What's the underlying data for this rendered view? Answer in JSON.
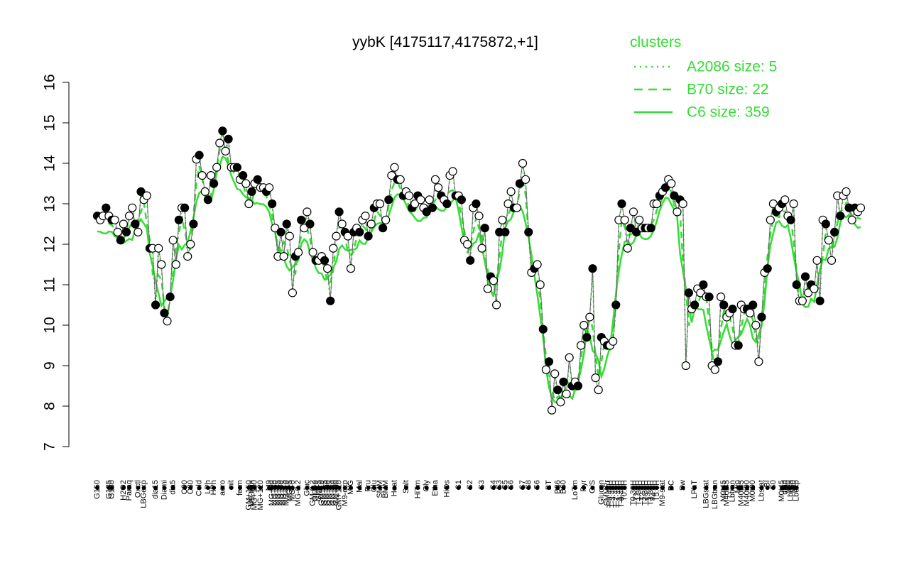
{
  "chart_data": {
    "type": "line",
    "title": "yybK [4175117,4175872,+1]",
    "xlabel": "",
    "ylabel": "",
    "ylim": [
      7,
      16
    ],
    "yticks": [
      7,
      8,
      9,
      10,
      11,
      12,
      13,
      14,
      15,
      16
    ],
    "grid": false,
    "legend": {
      "position": "top-right",
      "title": "clusters",
      "entries": [
        {
          "label": "A2086 size: 5",
          "style": "dotted"
        },
        {
          "label": "B70 size: 22",
          "style": "dashed"
        },
        {
          "label": "C6 size: 359",
          "style": "solid"
        }
      ]
    },
    "x_labels": [
      {
        "label": "G150",
        "i": 0
      },
      {
        "label": "G135",
        "i": 4
      },
      {
        "label": "G180",
        "i": 5
      },
      {
        "label": "H2O2",
        "i": 9
      },
      {
        "label": "Paraq",
        "i": 11
      },
      {
        "label": "Oxctl",
        "i": 14
      },
      {
        "label": "LBGexp",
        "i": 16
      },
      {
        "label": "dia15",
        "i": 20
      },
      {
        "label": "Diami",
        "i": 23
      },
      {
        "label": "dia5",
        "i": 26
      },
      {
        "label": "C90",
        "i": 30
      },
      {
        "label": "C30",
        "i": 32
      },
      {
        "label": "Cold",
        "i": 35
      },
      {
        "label": "LPh",
        "i": 38
      },
      {
        "label": "HPh",
        "i": 40
      },
      {
        "label": "aero",
        "i": 43
      },
      {
        "label": "nit",
        "i": 46
      },
      {
        "label": "ferm",
        "i": 49
      },
      {
        "label": "GM+150",
        "i": 52
      },
      {
        "label": "M9-tran",
        "i": 53
      },
      {
        "label": "MG+150",
        "i": 54
      },
      {
        "label": "MG+120",
        "i": 56
      },
      {
        "label": "M9",
        "i": 59
      },
      {
        "label": "MG+90",
        "i": 60
      },
      {
        "label": "MG+60",
        "i": 61
      },
      {
        "label": "MG+45",
        "i": 62
      },
      {
        "label": "MG+30",
        "i": 63
      },
      {
        "label": "MG+15",
        "i": 64
      },
      {
        "label": "MG+10",
        "i": 65
      },
      {
        "label": "MG+5",
        "i": 66
      },
      {
        "label": "MG+0",
        "i": 67
      },
      {
        "label": "MG-0.2",
        "i": 69
      },
      {
        "label": "Gluc",
        "i": 72
      },
      {
        "label": "GM-0.2",
        "i": 74
      },
      {
        "label": "GM+0",
        "i": 75
      },
      {
        "label": "GM+5",
        "i": 76
      },
      {
        "label": "GM+10",
        "i": 77
      },
      {
        "label": "GM+15",
        "i": 78
      },
      {
        "label": "GM+30",
        "i": 79
      },
      {
        "label": "GM+45",
        "i": 80
      },
      {
        "label": "GM+60",
        "i": 81
      },
      {
        "label": "GM+90",
        "i": 82
      },
      {
        "label": "GM+120",
        "i": 83
      },
      {
        "label": "M9-exp",
        "i": 85
      },
      {
        "label": "M/G",
        "i": 87
      },
      {
        "label": "Mal",
        "i": 90
      },
      {
        "label": "Fru",
        "i": 93
      },
      {
        "label": "Glu",
        "i": 95
      },
      {
        "label": "SMM",
        "i": 97
      },
      {
        "label": "BMM",
        "i": 99
      },
      {
        "label": "Heat",
        "i": 102
      },
      {
        "label": "Salt",
        "i": 106
      },
      {
        "label": "HiTm",
        "i": 110
      },
      {
        "label": "Gly",
        "i": 113
      },
      {
        "label": "Etha",
        "i": 116
      },
      {
        "label": "HiOs",
        "i": 120
      },
      {
        "label": "S1",
        "i": 124
      },
      {
        "label": "S2",
        "i": 128
      },
      {
        "label": "S3",
        "i": 132
      },
      {
        "label": "S4",
        "i": 136
      },
      {
        "label": "S3",
        "i": 138
      },
      {
        "label": "S5",
        "i": 140
      },
      {
        "label": "S6",
        "i": 142
      },
      {
        "label": "S7",
        "i": 146
      },
      {
        "label": "S8",
        "i": 148
      },
      {
        "label": "S6",
        "i": 151
      },
      {
        "label": "BT",
        "i": 155
      },
      {
        "label": "B36",
        "i": 158
      },
      {
        "label": "B60",
        "i": 160
      },
      {
        "label": "LoTm",
        "i": 164
      },
      {
        "label": "Pyr",
        "i": 167
      },
      {
        "label": "G/S",
        "i": 170
      },
      {
        "label": "Glucon",
        "i": 173
      },
      {
        "label": "SMMPr",
        "i": 175
      },
      {
        "label": "T-5.40H",
        "i": 176
      },
      {
        "label": "T-3.40H",
        "i": 177
      },
      {
        "label": "T-2.40H",
        "i": 178
      },
      {
        "label": "T-1.40H",
        "i": 179
      },
      {
        "label": "T-0.40H",
        "i": 180
      },
      {
        "label": "T0.0H",
        "i": 181
      },
      {
        "label": "T0.30H",
        "i": 184
      },
      {
        "label": "T1.0H",
        "i": 185
      },
      {
        "label": "T1.30H",
        "i": 186
      },
      {
        "label": "T2.0H",
        "i": 187
      },
      {
        "label": "T2.30H",
        "i": 188
      },
      {
        "label": "T3.0H",
        "i": 189
      },
      {
        "label": "T3.30H",
        "i": 190
      },
      {
        "label": "T4.0H",
        "i": 191
      },
      {
        "label": "T5.0H",
        "i": 192
      },
      {
        "label": "M9-stat",
        "i": 194
      },
      {
        "label": "BC",
        "i": 197
      },
      {
        "label": "Sw",
        "i": 201
      },
      {
        "label": "LPhT",
        "i": 205
      },
      {
        "label": "LBGstat",
        "i": 209
      },
      {
        "label": "LBGtran",
        "i": 212
      },
      {
        "label": "M0t45",
        "i": 215
      },
      {
        "label": "M40t45",
        "i": 216
      },
      {
        "label": "Lbtran",
        "i": 218
      },
      {
        "label": "Mt0",
        "i": 220
      },
      {
        "label": "M40t45",
        "i": 221
      },
      {
        "label": "M40t90",
        "i": 223
      },
      {
        "label": "M0t90",
        "i": 225
      },
      {
        "label": "Lbstat",
        "i": 228
      },
      {
        "label": "BI",
        "i": 230
      },
      {
        "label": "S0",
        "i": 232
      },
      {
        "label": "M0t45",
        "i": 235
      },
      {
        "label": "dia0",
        "i": 236
      },
      {
        "label": "Mt0",
        "i": 237
      },
      {
        "label": "Lbexp",
        "i": 238
      },
      {
        "label": "Mt0",
        "i": 239
      },
      {
        "label": "Lbexp",
        "i": 240
      }
    ],
    "series": [
      {
        "name": "yybK",
        "style": "points",
        "y": [
          12.7,
          12.6,
          12.7,
          12.9,
          12.7,
          12.6,
          12.6,
          12.3,
          12.1,
          12.5,
          12.3,
          12.7,
          12.9,
          12.5,
          12.3,
          13.3,
          13.1,
          13.2,
          11.9,
          11.9,
          10.5,
          11.9,
          11.5,
          10.3,
          10.1,
          10.7,
          12.1,
          11.5,
          12.6,
          12.9,
          12.9,
          11.7,
          12.0,
          12.5,
          14.1,
          14.2,
          13.7,
          13.3,
          13.1,
          13.7,
          13.5,
          13.9,
          14.5,
          14.8,
          14.3,
          14.6,
          13.9,
          13.9,
          13.9,
          13.6,
          13.7,
          13.5,
          13.0,
          13.3,
          13.5,
          13.6,
          13.4,
          13.4,
          13.3,
          13.4,
          13.0,
          12.4,
          11.7,
          12.3,
          11.7,
          12.5,
          12.2,
          10.8,
          11.7,
          11.8,
          12.6,
          12.4,
          12.8,
          12.5,
          11.8,
          11.6,
          11.6,
          11.7,
          11.6,
          11.4,
          10.6,
          11.9,
          12.2,
          12.8,
          12.5,
          12.3,
          12.2,
          11.4,
          12.3,
          12.4,
          12.3,
          12.6,
          12.7,
          12.2,
          12.5,
          12.9,
          13.0,
          13.0,
          12.4,
          12.6,
          13.1,
          13.7,
          13.9,
          13.6,
          13.6,
          13.2,
          13.3,
          13.2,
          12.9,
          13.0,
          13.2,
          13.1,
          12.9,
          12.8,
          13.1,
          12.9,
          13.6,
          13.4,
          13.2,
          13.1,
          13.0,
          13.7,
          13.8,
          13.2,
          13.2,
          13.1,
          12.1,
          12.0,
          11.6,
          12.9,
          13.0,
          12.7,
          11.9,
          12.4,
          10.9,
          11.2,
          11.1,
          10.5,
          12.3,
          12.6,
          12.3,
          13.0,
          13.3,
          12.9,
          12.9,
          13.5,
          14.0,
          13.6,
          12.3,
          11.3,
          11.4,
          11.5,
          11.0,
          9.9,
          8.9,
          9.1,
          7.9,
          8.8,
          8.4,
          8.1,
          8.6,
          8.3,
          9.2,
          8.5,
          8.6,
          8.5,
          9.5,
          10.0,
          9.7,
          10.2,
          11.4,
          8.7,
          8.4,
          9.7,
          9.6,
          9.5,
          9.5,
          9.6,
          10.5,
          12.6,
          13.0,
          12.6,
          11.9,
          12.4,
          12.8,
          12.3,
          12.6,
          12.4,
          12.4,
          12.4,
          12.4,
          13.0,
          13.0,
          13.2,
          13.3,
          13.4,
          13.6,
          13.5,
          13.2,
          12.8,
          13.1,
          13.0,
          9.0,
          10.8,
          10.4,
          10.5,
          10.9,
          10.8,
          11.0,
          10.7,
          10.7,
          9.0,
          8.9,
          9.1,
          10.7,
          10.5,
          10.2,
          10.3,
          10.4,
          9.5,
          9.5,
          10.5,
          10.4,
          10.4,
          10.3,
          10.5,
          10.0,
          9.1,
          10.2,
          11.3,
          11.4,
          12.6,
          13.0,
          12.8,
          12.9,
          13.0,
          13.1,
          12.7,
          12.6,
          13.0,
          11.0,
          10.6,
          10.6,
          11.2,
          10.8,
          11.0,
          10.9,
          11.6,
          10.6,
          12.6,
          12.5,
          12.1,
          11.6,
          12.3,
          13.2,
          12.7,
          13.2,
          13.3,
          12.9,
          12.6,
          12.9,
          12.8,
          12.9
        ]
      }
    ]
  }
}
